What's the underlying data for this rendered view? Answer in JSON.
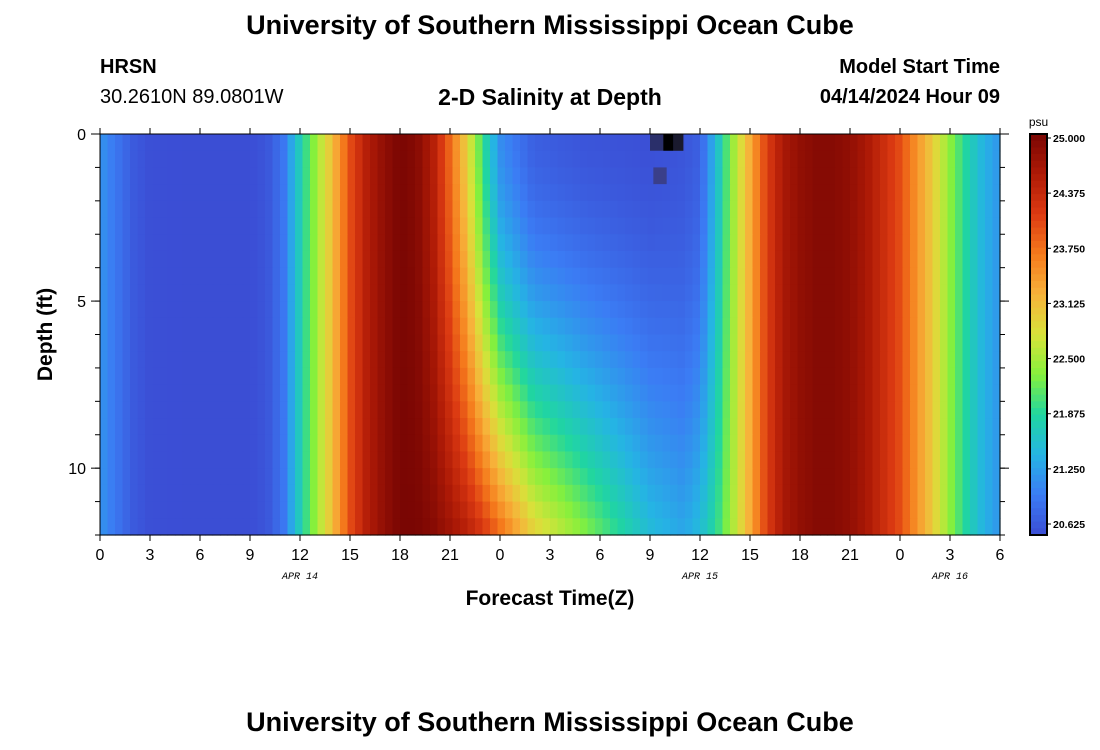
{
  "header": {
    "title": "University of Southern Mississippi Ocean Cube",
    "station": "HRSN",
    "coords": "30.2610N  89.0801W",
    "subtitle": "2-D Salinity at Depth",
    "start_label": "Model Start Time",
    "start_value": "04/14/2024 Hour 09"
  },
  "footer": {
    "title": "University of Southern Mississippi Ocean Cube"
  },
  "chart_data": {
    "type": "heatmap",
    "title": "2-D Salinity at Depth",
    "xlabel": "Forecast Time(Z)",
    "ylabel": "Depth (ft)",
    "x_hours_range": [
      0,
      54
    ],
    "x_tick_labels": [
      "0",
      "3",
      "6",
      "9",
      "12",
      "15",
      "18",
      "21",
      "0",
      "3",
      "6",
      "9",
      "12",
      "15",
      "18",
      "21",
      "0",
      "3",
      "6"
    ],
    "date_labels": [
      {
        "label": "APR 14",
        "hour": 12
      },
      {
        "label": "APR 15",
        "hour": 36
      },
      {
        "label": "APR 16",
        "hour": 51
      }
    ],
    "ylim": [
      0,
      12
    ],
    "y_tick_labels": [
      "0",
      "5",
      "10"
    ],
    "colorbar": {
      "unit": "psu",
      "min": 20.625,
      "max": 25.0,
      "tick_labels": [
        "25.000",
        "24.375",
        "23.750",
        "23.125",
        "22.500",
        "21.875",
        "21.250",
        "20.625"
      ]
    },
    "profile": {
      "hours": [
        0,
        1,
        2,
        3,
        5,
        9,
        10,
        11,
        12,
        13,
        14,
        15,
        16,
        17,
        18,
        19,
        20,
        21,
        22,
        23,
        24,
        26,
        29,
        33,
        35,
        36,
        37,
        38,
        39,
        40,
        41,
        42,
        43,
        44,
        45,
        46,
        47,
        48,
        49,
        50,
        51,
        52,
        53,
        54
      ],
      "surface": [
        21.25,
        21.0,
        20.75,
        20.65,
        20.63,
        20.63,
        20.7,
        21.0,
        21.8,
        22.5,
        23.2,
        24.0,
        24.5,
        24.8,
        25.0,
        24.9,
        24.5,
        23.8,
        23.0,
        22.0,
        21.2,
        20.8,
        20.7,
        20.65,
        20.7,
        20.8,
        21.6,
        22.5,
        23.3,
        24.1,
        24.6,
        24.8,
        24.9,
        24.9,
        24.8,
        24.6,
        24.3,
        24.0,
        23.5,
        23.0,
        22.4,
        21.9,
        21.5,
        21.25
      ],
      "bottom": [
        21.25,
        21.0,
        20.75,
        20.65,
        20.63,
        20.63,
        20.7,
        21.0,
        21.8,
        22.5,
        23.2,
        24.0,
        24.5,
        24.8,
        25.0,
        25.0,
        24.9,
        24.7,
        24.5,
        24.2,
        23.8,
        23.0,
        22.4,
        21.6,
        21.4,
        21.6,
        22.0,
        22.6,
        23.3,
        24.1,
        24.6,
        24.8,
        24.9,
        24.9,
        24.8,
        24.6,
        24.3,
        24.0,
        23.5,
        23.0,
        22.4,
        21.9,
        21.5,
        21.25
      ]
    },
    "anomaly": {
      "hours": [
        33,
        35
      ],
      "depths": [
        0,
        1.5
      ],
      "note": "dark cells near surface"
    }
  }
}
